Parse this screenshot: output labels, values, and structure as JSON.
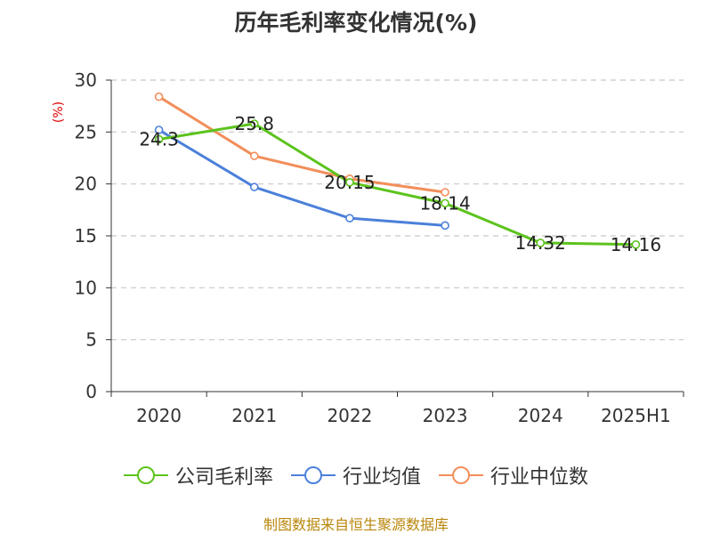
{
  "chart_data": {
    "type": "line",
    "title": "历年毛利率变化情况(%)",
    "ylabel": "(%)",
    "xlabel": "",
    "categories": [
      "2020",
      "2021",
      "2022",
      "2023",
      "2024",
      "2025H1"
    ],
    "ylim": [
      0,
      30
    ],
    "yticks": [
      0,
      5,
      10,
      15,
      20,
      25,
      30
    ],
    "grid": true,
    "legend_position": "bottom",
    "series": [
      {
        "name": "公司毛利率",
        "color": "#5cc31c",
        "values": [
          24.3,
          25.8,
          20.15,
          18.14,
          14.32,
          14.16
        ],
        "labels": [
          "24.3",
          "25.8",
          "20.15",
          "18.14",
          "14.32",
          "14.16"
        ]
      },
      {
        "name": "行业均值",
        "color": "#4b80da",
        "values": [
          25.2,
          19.7,
          16.7,
          16.0,
          null,
          null
        ]
      },
      {
        "name": "行业中位数",
        "color": "#f28e5a",
        "values": [
          28.4,
          22.7,
          20.5,
          19.2,
          null,
          null
        ]
      }
    ]
  },
  "source_text": "制图数据来自恒生聚源数据库"
}
